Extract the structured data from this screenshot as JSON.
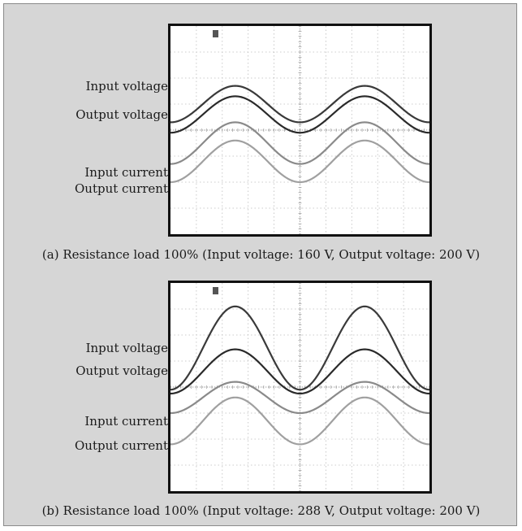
{
  "panels": [
    {
      "labels": [
        "Input voltage",
        "Output voltage",
        "Input current",
        "Output current"
      ],
      "caption": "(a) Resistance load 100% (Input voltage:  160 V, Output voltage:  200 V)"
    },
    {
      "labels": [
        "Input voltage",
        "Output voltage",
        "Input current",
        "Output current"
      ],
      "caption": "(b) Resistance load 100% (Input voltage:  288 V, Output voltage:  200 V)"
    }
  ],
  "chart_data": [
    {
      "type": "line",
      "title": "(a) Resistance load 100% (Input voltage:  160 V, Output voltage:  200 V)",
      "grid": true,
      "x": [
        0,
        0.25,
        0.5,
        0.75,
        1,
        1.25,
        1.5,
        1.75,
        2
      ],
      "ylim": [
        0,
        8
      ],
      "series": [
        {
          "name": "Input voltage",
          "color": "#3a3a3a",
          "offset": 1.0,
          "amplitude": 0.7,
          "cycles": 2,
          "phase": 0
        },
        {
          "name": "Output voltage",
          "color": "#2a2a2a",
          "offset": 0.6,
          "amplitude": 0.7,
          "cycles": 2,
          "phase": 0
        },
        {
          "name": "Input current",
          "color": "#8a8a8a",
          "offset": -0.5,
          "amplitude": 0.8,
          "cycles": 2,
          "phase": 0
        },
        {
          "name": "Output current",
          "color": "#a0a0a0",
          "offset": -1.2,
          "amplitude": 0.8,
          "cycles": 2,
          "phase": 0
        }
      ]
    },
    {
      "type": "line",
      "title": "(b) Resistance load 100% (Input voltage:  288 V, Output voltage:  200 V)",
      "grid": true,
      "x": [
        0,
        0.25,
        0.5,
        0.75,
        1,
        1.25,
        1.5,
        1.75,
        2
      ],
      "ylim": [
        0,
        8
      ],
      "series": [
        {
          "name": "Input voltage",
          "color": "#3a3a3a",
          "offset": 1.5,
          "amplitude": 1.6,
          "cycles": 2,
          "phase": 0
        },
        {
          "name": "Output voltage",
          "color": "#2a2a2a",
          "offset": 0.6,
          "amplitude": 0.85,
          "cycles": 2,
          "phase": 0
        },
        {
          "name": "Input current",
          "color": "#8a8a8a",
          "offset": -0.4,
          "amplitude": 0.6,
          "cycles": 2,
          "phase": 0
        },
        {
          "name": "Output current",
          "color": "#a0a0a0",
          "offset": -1.3,
          "amplitude": 0.9,
          "cycles": 2,
          "phase": 0
        }
      ]
    }
  ]
}
